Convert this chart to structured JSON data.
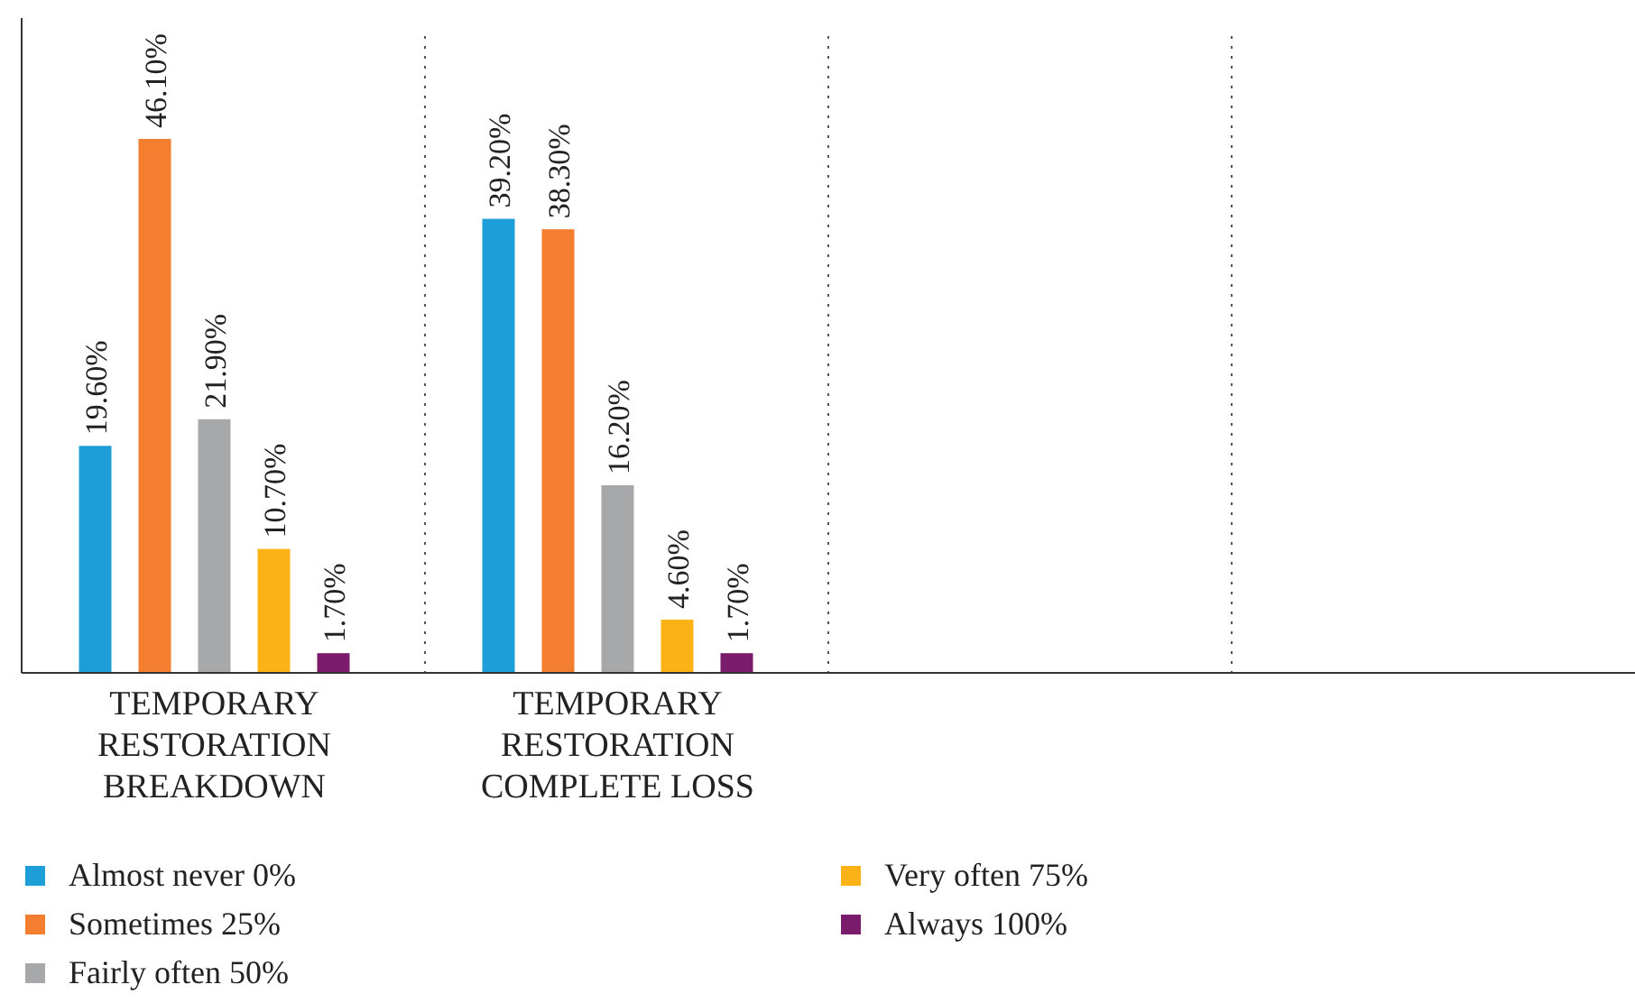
{
  "chart_data": {
    "type": "bar",
    "categories": [
      "TEMPORARY RESTORATION BREAKDOWN",
      "TEMPORARY RESTORATION COMPLETE LOSS",
      null,
      null
    ],
    "series": [
      {
        "name": "Almost never 0%",
        "color": "#1e9ed8",
        "values": [
          19.6,
          39.2,
          null,
          null
        ],
        "value_labels": [
          "19.60%",
          "39.20%",
          null,
          null
        ]
      },
      {
        "name": "Sometimes 25%",
        "color": "#f47e30",
        "values": [
          46.1,
          38.3,
          null,
          null
        ],
        "value_labels": [
          "46.10%",
          "38.30%",
          null,
          null
        ]
      },
      {
        "name": "Fairly often 50%",
        "color": "#a7a8aa",
        "values": [
          21.9,
          16.2,
          null,
          null
        ],
        "value_labels": [
          "21.90%",
          "16.20%",
          null,
          null
        ]
      },
      {
        "name": "Very often 75%",
        "color": "#fbb217",
        "values": [
          10.7,
          4.6,
          null,
          null
        ],
        "value_labels": [
          "10.70%",
          "4.60%",
          null,
          null
        ]
      },
      {
        "name": "Always 100%",
        "color": "#7a1b6c",
        "values": [
          1.7,
          1.7,
          null,
          null
        ],
        "value_labels": [
          "1.70%",
          "1.70%",
          null,
          null
        ]
      }
    ],
    "legend": "bottom"
  }
}
